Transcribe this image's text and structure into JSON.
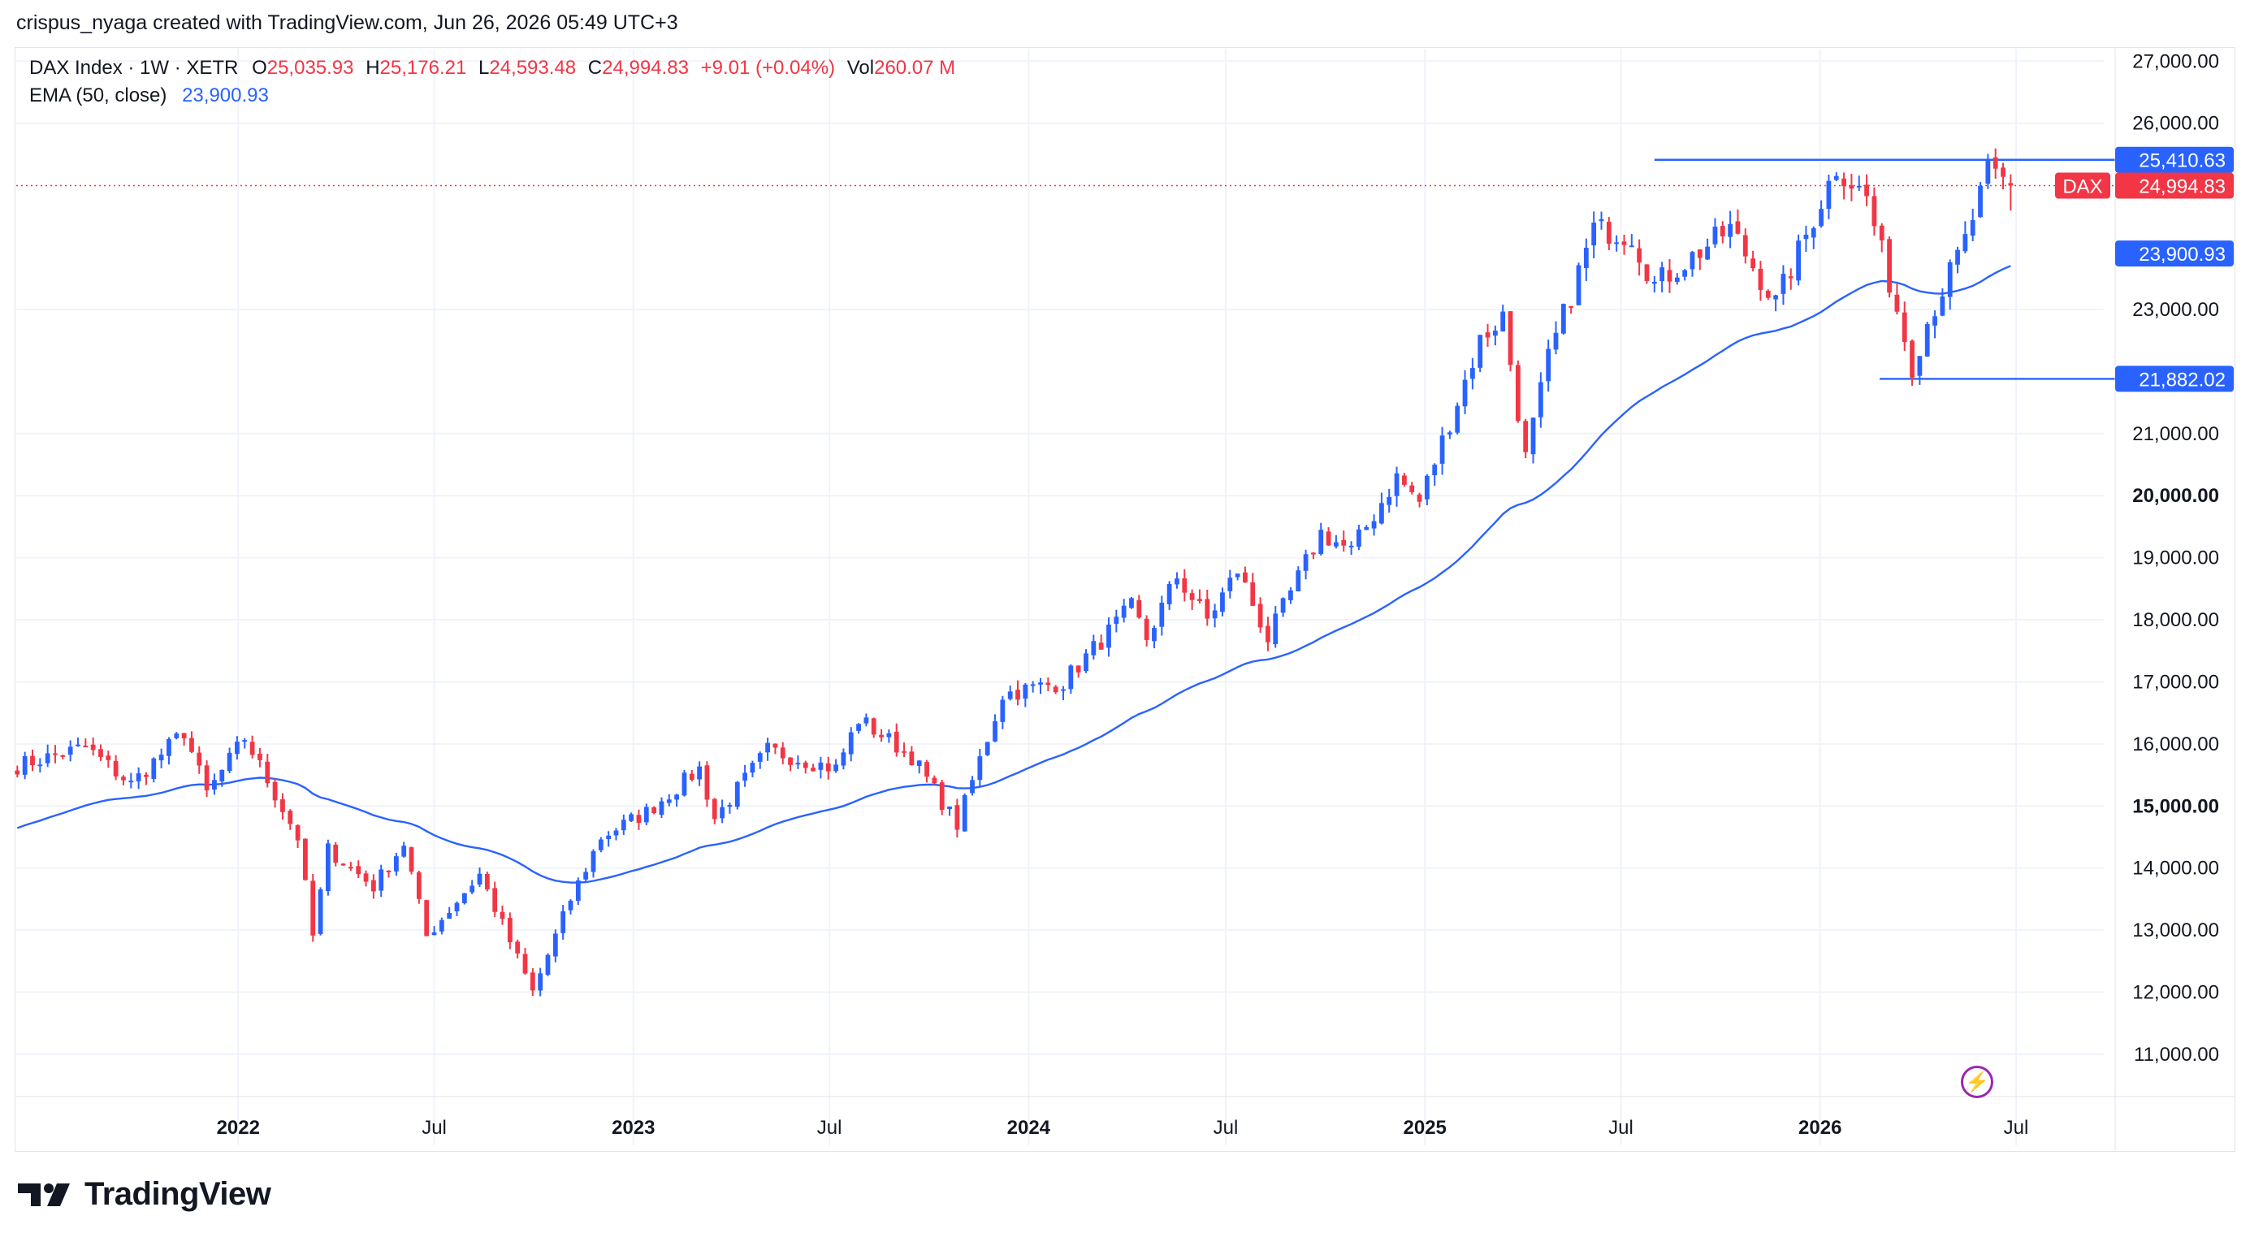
{
  "caption": "crispus_nyaga created with TradingView.com, Jun 26, 2026 05:49 UTC+3",
  "legend": {
    "symbol": "DAX Index · 1W · XETR",
    "o_label": "O",
    "o_value": "25,035.93",
    "h_label": "H",
    "h_value": "25,176.21",
    "l_label": "L",
    "l_value": "24,593.48",
    "c_label": "C",
    "c_value": "24,994.83",
    "change": "+9.01 (+0.04%)",
    "vol_label": "Vol",
    "vol_value": "260.07 M",
    "ema_label": "EMA (50, close)",
    "ema_value": "23,900.93"
  },
  "brand": "TradingView",
  "colors": {
    "up": "#2962ff",
    "down": "#f23645",
    "ema": "#2962ff",
    "grid": "#f0f3fa",
    "axis_text": "#131722"
  },
  "icons": {
    "lightning": "lightning-icon",
    "logo": "tradingview-logo-icon"
  },
  "chart_data": {
    "type": "candlestick",
    "x_ticks": [
      {
        "label": "2022",
        "date": "2022-01-01",
        "bold": true
      },
      {
        "label": "Jul",
        "date": "2022-07-01",
        "bold": false
      },
      {
        "label": "2023",
        "date": "2023-01-01",
        "bold": true
      },
      {
        "label": "Jul",
        "date": "2023-07-01",
        "bold": false
      },
      {
        "label": "2024",
        "date": "2024-01-01",
        "bold": true
      },
      {
        "label": "Jul",
        "date": "2024-07-01",
        "bold": false
      },
      {
        "label": "2025",
        "date": "2025-01-01",
        "bold": true
      },
      {
        "label": "Jul",
        "date": "2025-07-01",
        "bold": false
      },
      {
        "label": "2026",
        "date": "2026-01-01",
        "bold": true
      },
      {
        "label": "Jul",
        "date": "2026-07-01",
        "bold": false
      }
    ],
    "y_ticks": [
      {
        "label": "11,000.00",
        "value": 11000,
        "bold": false
      },
      {
        "label": "12,000.00",
        "value": 12000,
        "bold": false
      },
      {
        "label": "13,000.00",
        "value": 13000,
        "bold": false
      },
      {
        "label": "14,000.00",
        "value": 14000,
        "bold": false
      },
      {
        "label": "15,000.00",
        "value": 15000,
        "bold": true
      },
      {
        "label": "16,000.00",
        "value": 16000,
        "bold": false
      },
      {
        "label": "17,000.00",
        "value": 17000,
        "bold": false
      },
      {
        "label": "18,000.00",
        "value": 18000,
        "bold": false
      },
      {
        "label": "19,000.00",
        "value": 19000,
        "bold": false
      },
      {
        "label": "20,000.00",
        "value": 20000,
        "bold": true
      },
      {
        "label": "21,000.00",
        "value": 21000,
        "bold": false
      },
      {
        "label": "23,000.00",
        "value": 23000,
        "bold": false
      },
      {
        "label": "26,000.00",
        "value": 26000,
        "bold": false
      },
      {
        "label": "27,000.00",
        "value": 27000,
        "bold": false
      }
    ],
    "y_range": [
      10450,
      27200
    ],
    "x_range": [
      "2021-06-10",
      "2026-09-20"
    ],
    "price_labels": [
      {
        "text": "25,410.63",
        "value": 25410.63,
        "style": "blue"
      },
      {
        "text": "24,994.83",
        "value": 24994.83,
        "style": "red",
        "tag": "DAX"
      },
      {
        "text": "23,900.93",
        "value": 23900.93,
        "style": "blue"
      },
      {
        "text": "21,882.02",
        "value": 21882.02,
        "style": "blue"
      }
    ],
    "horizontal_lines": [
      {
        "value": 25410.63,
        "start": "2025-08-01",
        "end": "2026-09-20"
      },
      {
        "value": 21882.02,
        "start": "2026-02-25",
        "end": "2026-09-20"
      }
    ],
    "last_price": 24994.83,
    "ema_period": 50,
    "anchors": [
      [
        "2021-06-11",
        15650
      ],
      [
        "2021-08-13",
        15950
      ],
      [
        "2021-09-24",
        15350
      ],
      [
        "2021-11-12",
        16200
      ],
      [
        "2021-12-03",
        15200
      ],
      [
        "2022-01-07",
        16100
      ],
      [
        "2022-02-25",
        14500
      ],
      [
        "2022-03-11",
        12900
      ],
      [
        "2022-03-25",
        14300
      ],
      [
        "2022-05-06",
        13700
      ],
      [
        "2022-06-03",
        14400
      ],
      [
        "2022-06-24",
        12900
      ],
      [
        "2022-08-12",
        13900
      ],
      [
        "2022-09-30",
        12000
      ],
      [
        "2022-11-04",
        13500
      ],
      [
        "2022-12-02",
        14500
      ],
      [
        "2023-01-13",
        14900
      ],
      [
        "2023-03-03",
        15600
      ],
      [
        "2023-03-17",
        14800
      ],
      [
        "2023-05-05",
        15900
      ],
      [
        "2023-07-07",
        15600
      ],
      [
        "2023-07-28",
        16400
      ],
      [
        "2023-09-15",
        15800
      ],
      [
        "2023-10-27",
        14700
      ],
      [
        "2023-12-08",
        16800
      ],
      [
        "2024-02-02",
        17000
      ],
      [
        "2024-04-05",
        18200
      ],
      [
        "2024-04-19",
        17700
      ],
      [
        "2024-05-17",
        18700
      ],
      [
        "2024-06-14",
        18000
      ],
      [
        "2024-07-12",
        18800
      ],
      [
        "2024-08-09",
        17700
      ],
      [
        "2024-09-27",
        19400
      ],
      [
        "2024-10-25",
        19100
      ],
      [
        "2024-12-06",
        20300
      ],
      [
        "2024-12-27",
        19900
      ],
      [
        "2025-02-21",
        22500
      ],
      [
        "2025-03-14",
        22900
      ],
      [
        "2025-04-04",
        20600
      ],
      [
        "2025-04-25",
        22200
      ],
      [
        "2025-06-06",
        24300
      ],
      [
        "2025-07-11",
        24200
      ],
      [
        "2025-08-01",
        23400
      ],
      [
        "2025-10-10",
        24300
      ],
      [
        "2025-11-21",
        23100
      ],
      [
        "2026-01-16",
        25300
      ],
      [
        "2026-02-13",
        24800
      ],
      [
        "2026-03-27",
        22100
      ],
      [
        "2026-04-10",
        22800
      ],
      [
        "2026-05-15",
        24100
      ],
      [
        "2026-06-05",
        25200
      ],
      [
        "2026-06-26",
        24994.83
      ]
    ]
  }
}
